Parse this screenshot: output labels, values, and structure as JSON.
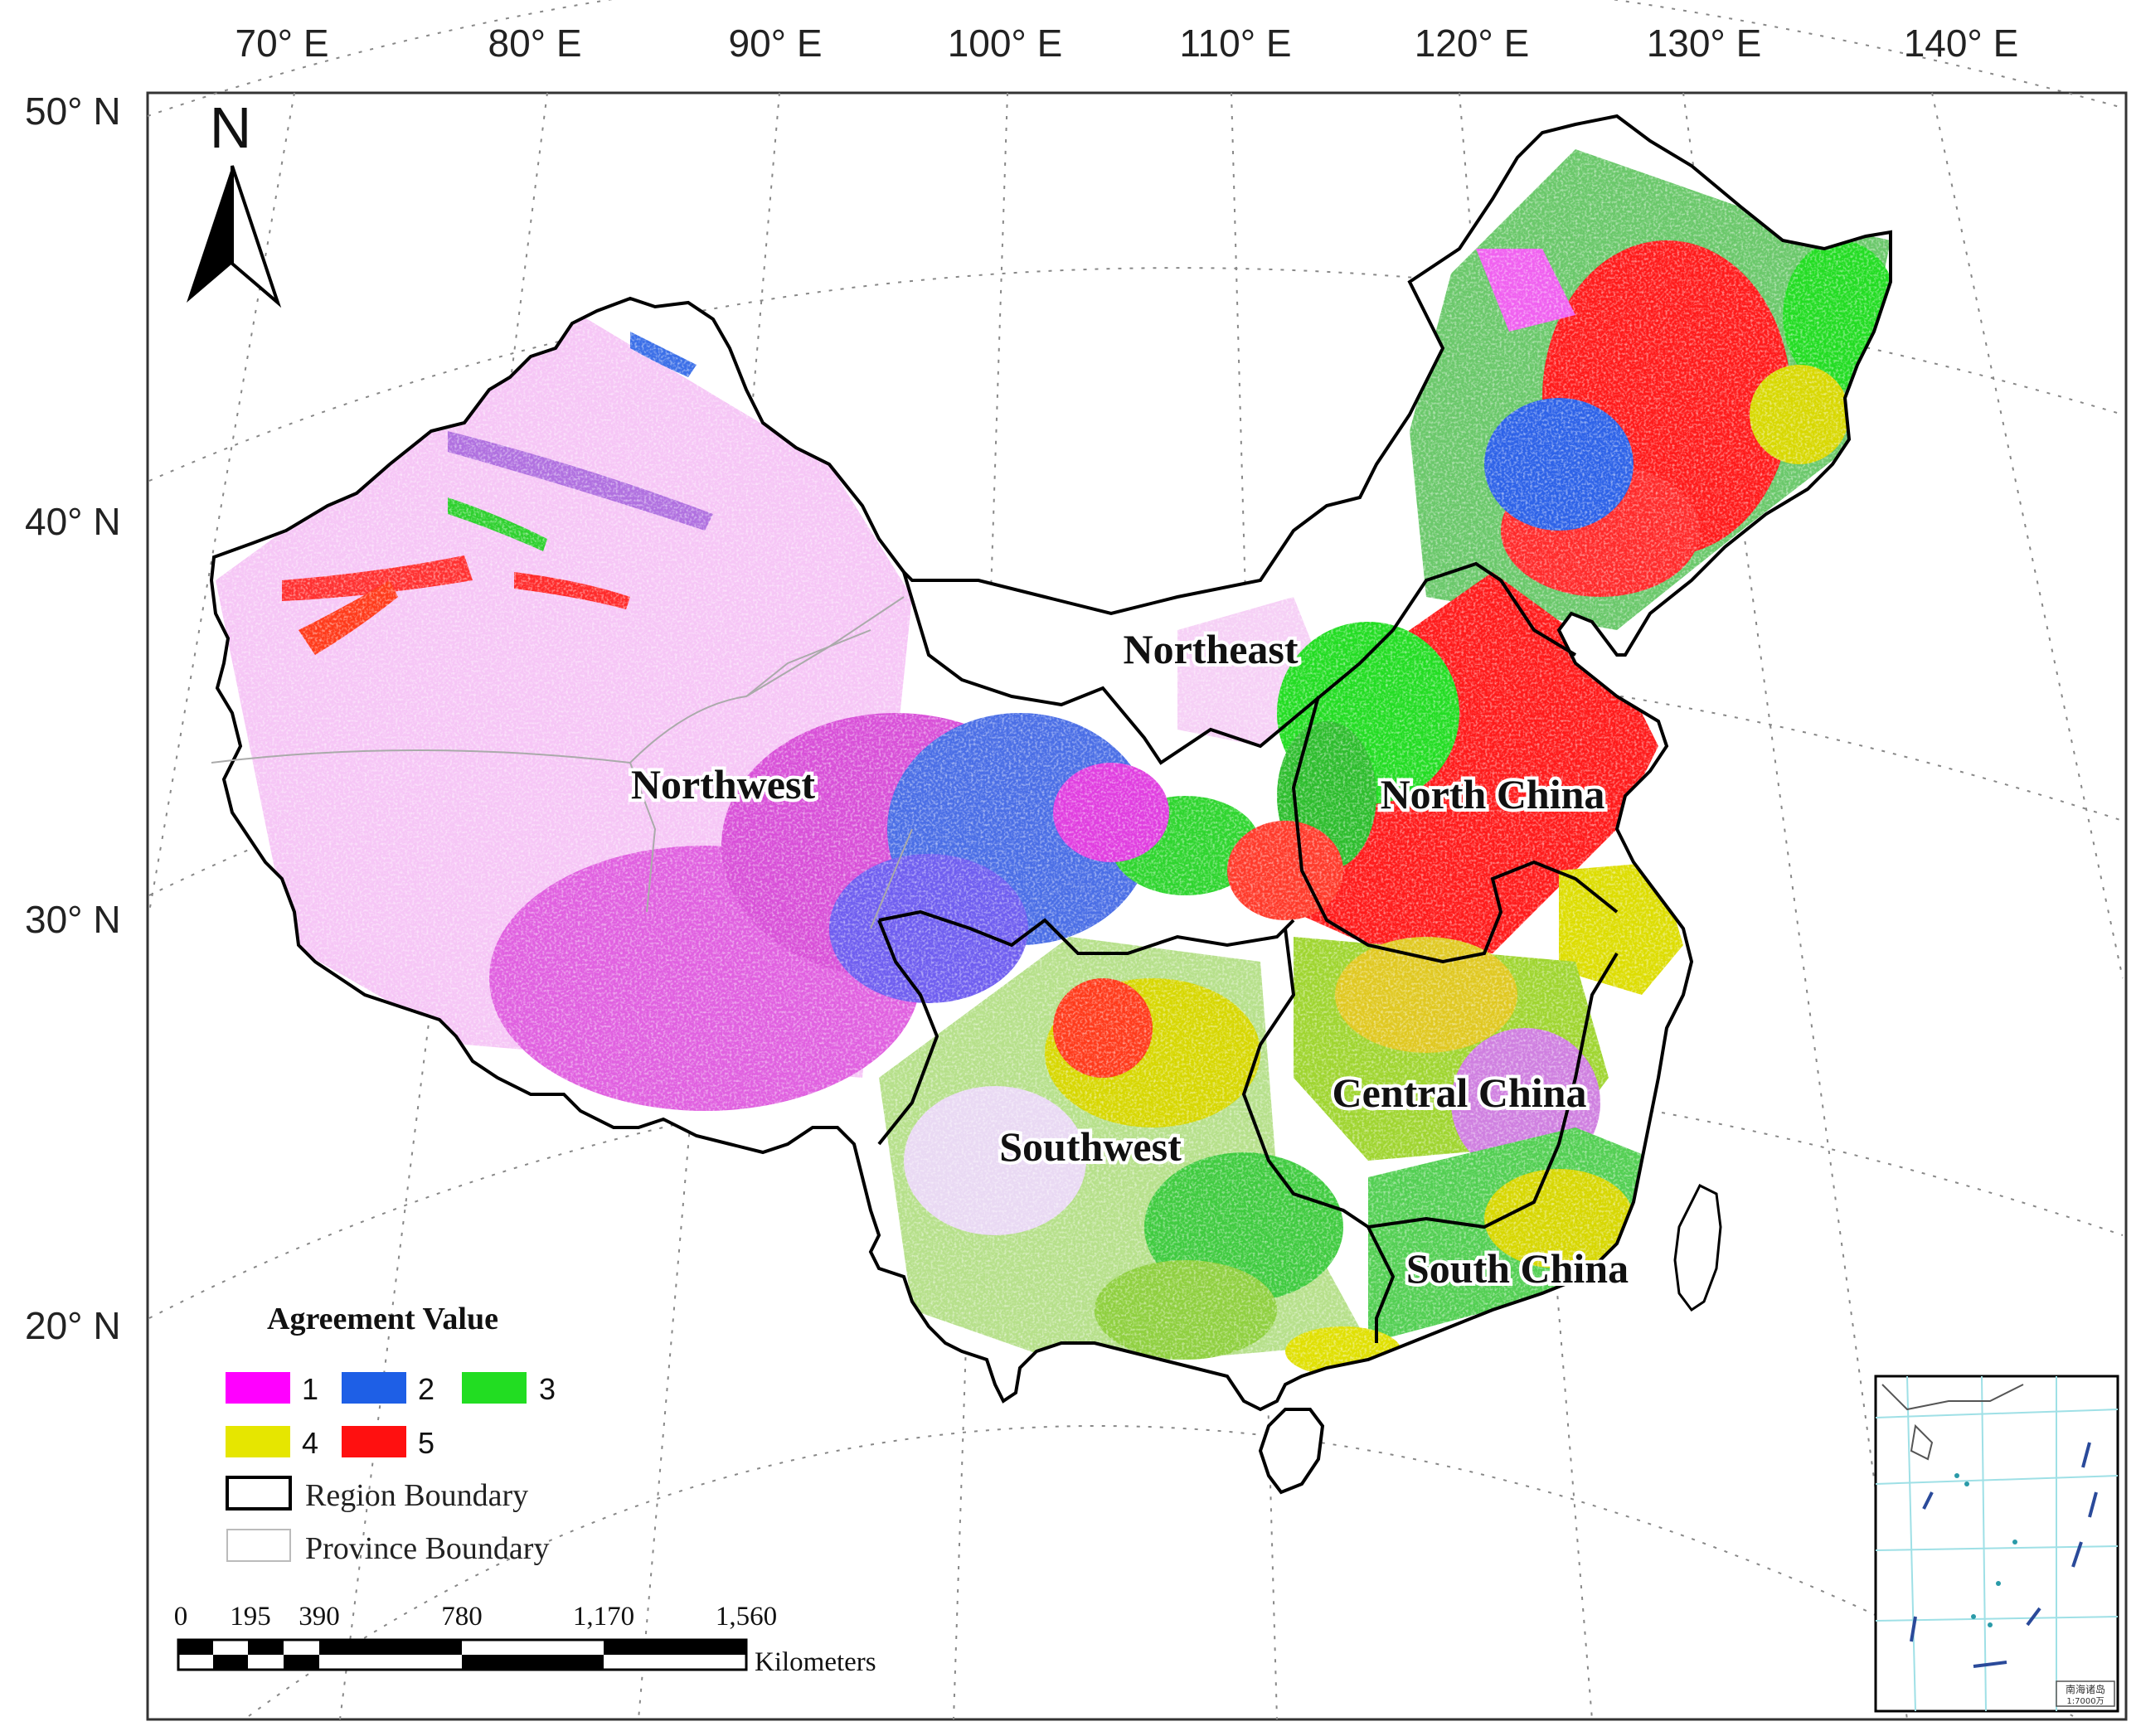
{
  "map": {
    "longitude_labels": [
      "70° E",
      "80° E",
      "90° E",
      "100° E",
      "110° E",
      "120° E",
      "130° E",
      "140° E"
    ],
    "latitude_labels": [
      "50° N",
      "40° N",
      "30° N",
      "20° N"
    ],
    "north_arrow": {
      "letter": "N",
      "icon": "north-arrow-icon"
    },
    "regions": [
      {
        "key": "northwest",
        "label": "Northwest"
      },
      {
        "key": "northeast",
        "label": "Northeast"
      },
      {
        "key": "north_china",
        "label": "North China"
      },
      {
        "key": "central_china",
        "label": "Central China"
      },
      {
        "key": "southwest",
        "label": "Southwest"
      },
      {
        "key": "south_china",
        "label": "South China"
      }
    ]
  },
  "legend": {
    "title": "Agreement Value",
    "classes": [
      {
        "value": "1",
        "color": "#ff00ff"
      },
      {
        "value": "2",
        "color": "#1e5fe6"
      },
      {
        "value": "3",
        "color": "#22dd22"
      },
      {
        "value": "4",
        "color": "#e6e600"
      },
      {
        "value": "5",
        "color": "#ff1010"
      }
    ],
    "region_boundary_label": "Region Boundary",
    "province_boundary_label": "Province Boundary"
  },
  "scale_bar": {
    "ticks": [
      "0",
      "195",
      "390",
      "780",
      "1,170",
      "1,560"
    ],
    "unit": "Kilometers"
  },
  "inset": {
    "caption_line1": "南海诸岛",
    "caption_line2": "1:7000万"
  }
}
